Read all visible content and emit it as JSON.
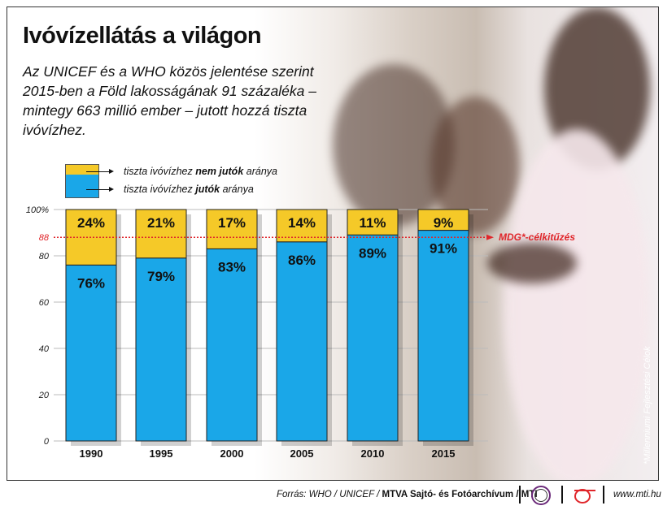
{
  "title": "Ivóvízellátás a világon",
  "subtitle": "Az UNICEF és a WHO közös jelentése szerint 2015-ben a Föld lakosságának 91 százaléka – mintegy 663 millió ember – jutott hozzá tiszta ivóvízhez.",
  "legend": {
    "not_access_pre": "tiszta ivóvízhez ",
    "not_access_bold": "nem jutók",
    "not_access_post": " aránya",
    "access_pre": "tiszta ivóvízhez ",
    "access_bold": "jutók",
    "access_post": " aránya"
  },
  "footnote": "*Millenniumi Fejlesztési Célok",
  "source": {
    "pre": "Forrás: WHO / UNICEF / ",
    "bold": "MTVA Sajtó- és Fotóarchívum / MTI",
    "logo1": "MTVA",
    "website": "www.mti.hu"
  },
  "colors": {
    "access": "#1aa7e8",
    "no_access": "#f5c928",
    "target": "#e0262b"
  },
  "chart_data": {
    "type": "bar",
    "stacked": true,
    "categories": [
      "1990",
      "1995",
      "2000",
      "2005",
      "2010",
      "2015"
    ],
    "series": [
      {
        "name": "tiszta ivóvízhez jutók aránya",
        "values": [
          76,
          79,
          83,
          86,
          89,
          91
        ],
        "labels": [
          "76%",
          "79%",
          "83%",
          "86%",
          "89%",
          "91%"
        ]
      },
      {
        "name": "tiszta ivóvízhez nem jutók aránya",
        "values": [
          24,
          21,
          17,
          14,
          11,
          9
        ],
        "labels": [
          "24%",
          "21%",
          "17%",
          "14%",
          "11%",
          "9%"
        ]
      }
    ],
    "yticks": [
      "0",
      "20",
      "40",
      "60",
      "80",
      "100%"
    ],
    "ytick_values": [
      0,
      20,
      40,
      60,
      80,
      100
    ],
    "ylim": [
      0,
      100
    ],
    "target": {
      "value": 88,
      "tick_label": "88",
      "label": "MDG*-célkitűzés"
    }
  }
}
